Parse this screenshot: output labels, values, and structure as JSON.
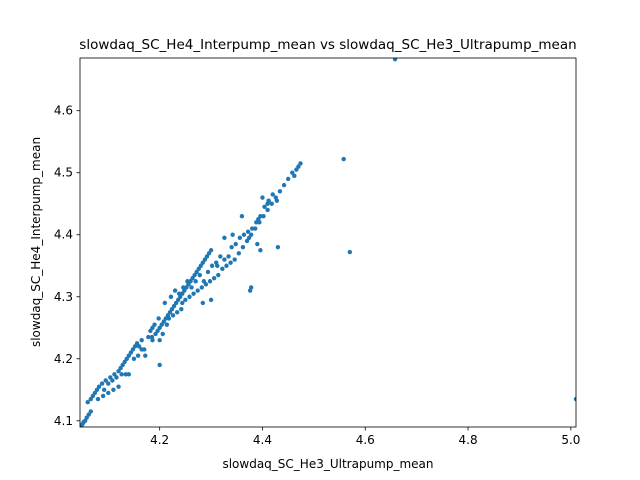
{
  "chart_data": {
    "type": "scatter",
    "title": "slowdaq_SC_He4_Interpump_mean vs slowdaq_SC_He3_Ultrapump_mean",
    "xlabel": "slowdaq_SC_He3_Ultrapump_mean",
    "ylabel": "slowdaq_SC_He4_Interpump_mean",
    "xlim": [
      4.045,
      5.01
    ],
    "ylim": [
      4.09,
      4.685
    ],
    "xticks": [
      "4.2",
      "4.4",
      "4.6",
      "4.8",
      "5.0"
    ],
    "yticks": [
      "4.1",
      "4.2",
      "4.3",
      "4.4",
      "4.5",
      "4.6"
    ],
    "grid": false,
    "marker_color": "#1f77b4",
    "series": [
      {
        "points": [
          [
            4.046,
            4.09
          ],
          [
            4.048,
            4.092
          ],
          [
            4.05,
            4.095
          ],
          [
            4.052,
            4.098
          ],
          [
            4.055,
            4.1
          ],
          [
            4.058,
            4.105
          ],
          [
            4.062,
            4.11
          ],
          [
            4.066,
            4.115
          ],
          [
            4.06,
            4.13
          ],
          [
            4.066,
            4.135
          ],
          [
            4.07,
            4.14
          ],
          [
            4.074,
            4.145
          ],
          [
            4.078,
            4.15
          ],
          [
            4.082,
            4.155
          ],
          [
            4.088,
            4.16
          ],
          [
            4.092,
            4.15
          ],
          [
            4.095,
            4.165
          ],
          [
            4.1,
            4.16
          ],
          [
            4.104,
            4.17
          ],
          [
            4.108,
            4.165
          ],
          [
            4.112,
            4.175
          ],
          [
            4.116,
            4.17
          ],
          [
            4.12,
            4.18
          ],
          [
            4.124,
            4.185
          ],
          [
            4.128,
            4.19
          ],
          [
            4.132,
            4.195
          ],
          [
            4.136,
            4.2
          ],
          [
            4.14,
            4.205
          ],
          [
            4.144,
            4.21
          ],
          [
            4.148,
            4.215
          ],
          [
            4.152,
            4.22
          ],
          [
            4.156,
            4.225
          ],
          [
            4.09,
            4.14
          ],
          [
            4.1,
            4.145
          ],
          [
            4.11,
            4.15
          ],
          [
            4.12,
            4.155
          ],
          [
            4.126,
            4.175
          ],
          [
            4.134,
            4.175
          ],
          [
            4.15,
            4.2
          ],
          [
            4.158,
            4.205
          ],
          [
            4.165,
            4.215
          ],
          [
            4.17,
            4.215
          ],
          [
            4.165,
            4.23
          ],
          [
            4.178,
            4.235
          ],
          [
            4.182,
            4.245
          ],
          [
            4.186,
            4.25
          ],
          [
            4.19,
            4.255
          ],
          [
            4.185,
            4.235
          ],
          [
            4.192,
            4.24
          ],
          [
            4.196,
            4.245
          ],
          [
            4.2,
            4.25
          ],
          [
            4.2,
            4.23
          ],
          [
            4.204,
            4.255
          ],
          [
            4.208,
            4.26
          ],
          [
            4.212,
            4.265
          ],
          [
            4.216,
            4.27
          ],
          [
            4.22,
            4.275
          ],
          [
            4.224,
            4.28
          ],
          [
            4.228,
            4.285
          ],
          [
            4.232,
            4.29
          ],
          [
            4.236,
            4.295
          ],
          [
            4.24,
            4.3
          ],
          [
            4.244,
            4.305
          ],
          [
            4.248,
            4.31
          ],
          [
            4.252,
            4.315
          ],
          [
            4.256,
            4.32
          ],
          [
            4.26,
            4.325
          ],
          [
            4.264,
            4.33
          ],
          [
            4.268,
            4.335
          ],
          [
            4.272,
            4.34
          ],
          [
            4.276,
            4.345
          ],
          [
            4.28,
            4.35
          ],
          [
            4.284,
            4.355
          ],
          [
            4.288,
            4.36
          ],
          [
            4.292,
            4.365
          ],
          [
            4.296,
            4.37
          ],
          [
            4.3,
            4.375
          ],
          [
            4.21,
            4.29
          ],
          [
            4.218,
            4.265
          ],
          [
            4.226,
            4.27
          ],
          [
            4.234,
            4.275
          ],
          [
            4.242,
            4.28
          ],
          [
            4.25,
            4.295
          ],
          [
            4.258,
            4.3
          ],
          [
            4.266,
            4.305
          ],
          [
            4.274,
            4.31
          ],
          [
            4.282,
            4.315
          ],
          [
            4.29,
            4.32
          ],
          [
            4.298,
            4.325
          ],
          [
            4.306,
            4.33
          ],
          [
            4.314,
            4.335
          ],
          [
            4.322,
            4.345
          ],
          [
            4.33,
            4.35
          ],
          [
            4.338,
            4.355
          ],
          [
            4.346,
            4.36
          ],
          [
            4.354,
            4.37
          ],
          [
            4.362,
            4.38
          ],
          [
            4.37,
            4.39
          ],
          [
            4.378,
            4.4
          ],
          [
            4.386,
            4.41
          ],
          [
            4.394,
            4.42
          ],
          [
            4.402,
            4.43
          ],
          [
            4.41,
            4.44
          ],
          [
            4.418,
            4.45
          ],
          [
            4.426,
            4.46
          ],
          [
            4.434,
            4.47
          ],
          [
            4.442,
            4.48
          ],
          [
            4.45,
            4.49
          ],
          [
            4.458,
            4.5
          ],
          [
            4.466,
            4.505
          ],
          [
            4.474,
            4.515
          ],
          [
            4.462,
            4.495
          ],
          [
            4.47,
            4.51
          ],
          [
            4.34,
            4.38
          ],
          [
            4.348,
            4.385
          ],
          [
            4.356,
            4.395
          ],
          [
            4.364,
            4.4
          ],
          [
            4.372,
            4.405
          ],
          [
            4.38,
            4.41
          ],
          [
            4.388,
            4.42
          ],
          [
            4.396,
            4.43
          ],
          [
            4.404,
            4.445
          ],
          [
            4.412,
            4.455
          ],
          [
            4.42,
            4.465
          ],
          [
            4.428,
            4.455
          ],
          [
            4.36,
            4.43
          ],
          [
            4.374,
            4.395
          ],
          [
            4.392,
            4.425
          ],
          [
            4.4,
            4.46
          ],
          [
            4.41,
            4.45
          ],
          [
            4.376,
            4.31
          ],
          [
            4.378,
            4.315
          ],
          [
            4.39,
            4.385
          ],
          [
            4.396,
            4.375
          ],
          [
            4.43,
            4.38
          ],
          [
            4.3,
            4.295
          ],
          [
            4.284,
            4.29
          ],
          [
            4.244,
            4.29
          ],
          [
            4.2,
            4.19
          ],
          [
            4.14,
            4.175
          ],
          [
            4.08,
            4.135
          ],
          [
            4.16,
            4.22
          ],
          [
            4.172,
            4.205
          ],
          [
            4.186,
            4.23
          ],
          [
            4.198,
            4.265
          ],
          [
            4.206,
            4.24
          ],
          [
            4.214,
            4.255
          ],
          [
            4.222,
            4.3
          ],
          [
            4.23,
            4.31
          ],
          [
            4.238,
            4.305
          ],
          [
            4.246,
            4.315
          ],
          [
            4.254,
            4.325
          ],
          [
            4.262,
            4.315
          ],
          [
            4.27,
            4.325
          ],
          [
            4.278,
            4.335
          ],
          [
            4.286,
            4.325
          ],
          [
            4.294,
            4.34
          ],
          [
            4.302,
            4.35
          ],
          [
            4.31,
            4.355
          ],
          [
            4.318,
            4.365
          ],
          [
            4.326,
            4.36
          ],
          [
            4.334,
            4.365
          ],
          [
            4.342,
            4.4
          ],
          [
            4.326,
            4.395
          ],
          [
            4.312,
            4.35
          ],
          [
            4.558,
            4.522
          ],
          [
            4.57,
            4.372
          ],
          [
            4.658,
            4.683
          ],
          [
            5.01,
            4.135
          ]
        ]
      }
    ]
  }
}
